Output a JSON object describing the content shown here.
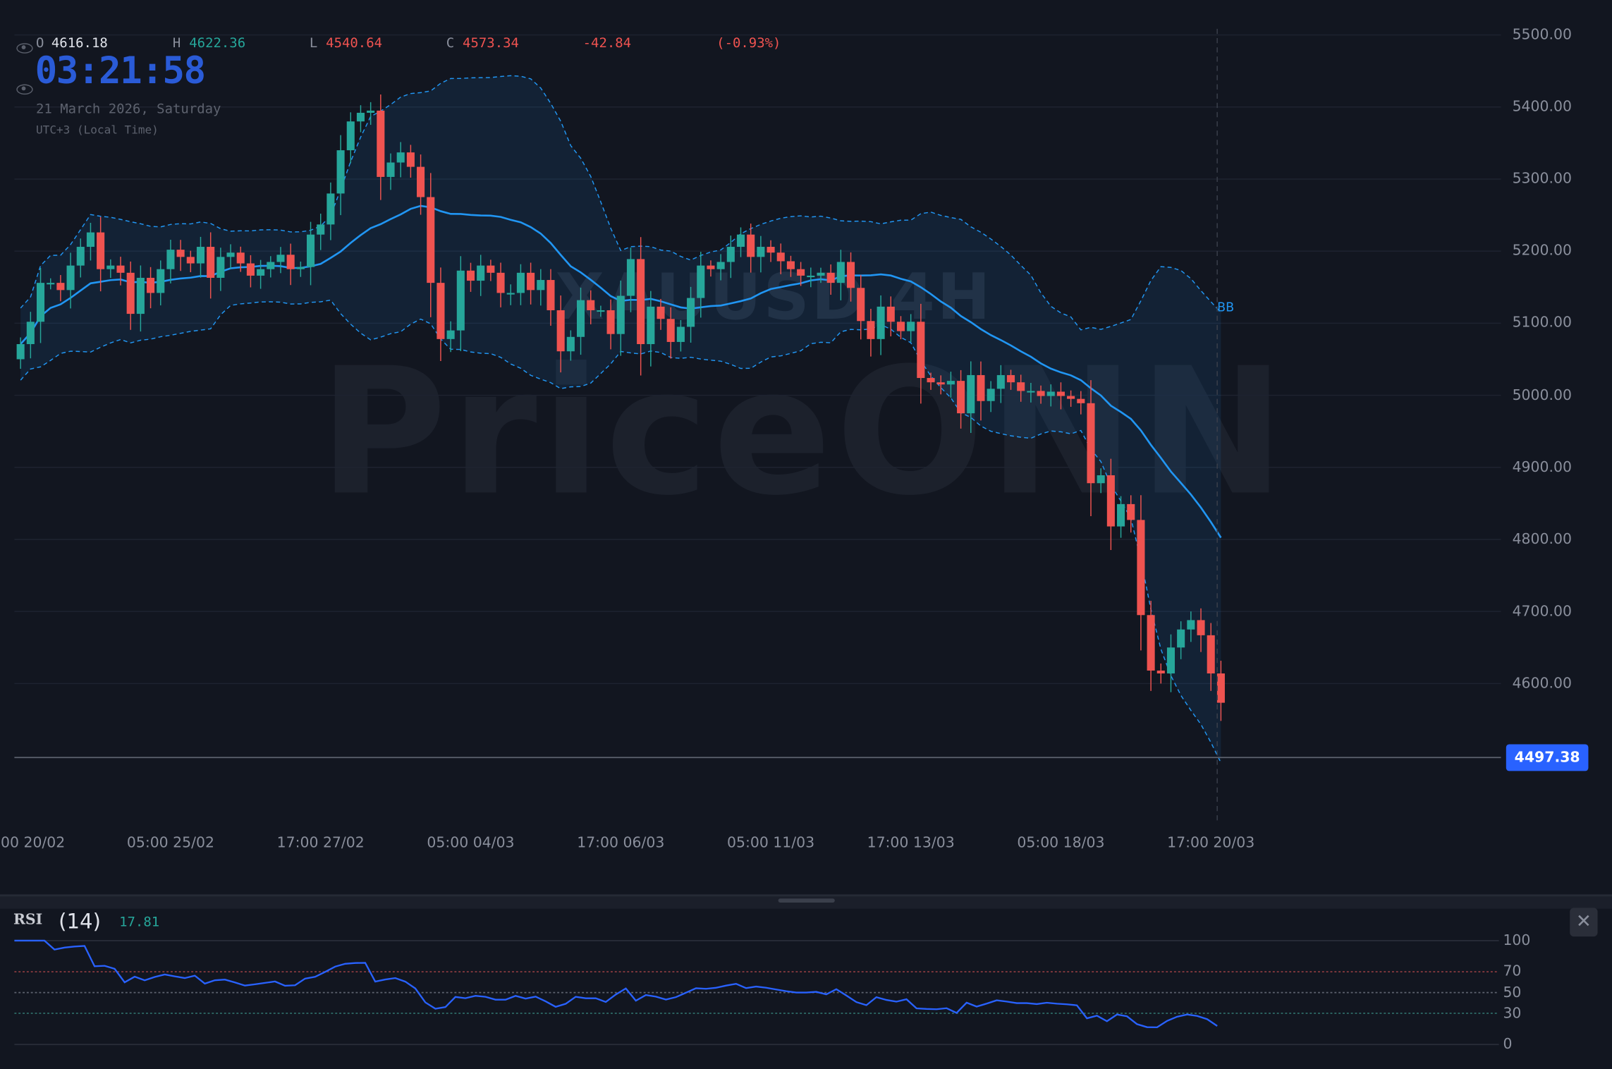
{
  "header": {
    "ohlc": {
      "o_label": "O",
      "o": "4616.18",
      "h_label": "H",
      "h": "4622.36",
      "l_label": "L",
      "l": "4540.64",
      "c_label": "C",
      "c": "4573.34",
      "change": "-42.84",
      "change_pct": "(-0.93%)"
    },
    "clock": "03:21:58",
    "date": "21 March 2026, Saturday",
    "timezone": "UTC+3 (Local Time)"
  },
  "watermark": {
    "symbol": "XAUUSD 4H",
    "brand": "PriceONN"
  },
  "colors": {
    "up": "#26a69a",
    "down": "#ef5350",
    "basis": "#2196f3",
    "band": "#2196f3",
    "price_tag": "#2962ff",
    "rsi": "#2962ff",
    "clock": "#2a5bd7"
  },
  "indicator_label": "BB",
  "current_price": "4497.38",
  "chart_data": [
    {
      "type": "candlestick",
      "yaxis": {
        "ticks": [
          "5500.00",
          "5400.00",
          "5300.00",
          "5200.00",
          "5100.00",
          "5000.00",
          "4900.00",
          "4800.00",
          "4700.00",
          "4600.00"
        ],
        "range": [
          4460,
          5545
        ]
      },
      "xticks": [
        {
          "label": "00 20/02",
          "index": 1
        },
        {
          "label": "05:00 25/02",
          "index": 15
        },
        {
          "label": "17:00 27/02",
          "index": 30
        },
        {
          "label": "05:00 04/03",
          "index": 45
        },
        {
          "label": "17:00 06/03",
          "index": 60
        },
        {
          "label": "05:00 11/03",
          "index": 75
        },
        {
          "label": "17:00 13/03",
          "index": 89
        },
        {
          "label": "05:00 18/03",
          "index": 104
        },
        {
          "label": "17:00 20/03",
          "index": 119
        }
      ],
      "first_open": 5050,
      "closes": [
        5071,
        5102,
        5156,
        5156,
        5146,
        5180,
        5206,
        5226,
        5175,
        5180,
        5170,
        5113,
        5163,
        5142,
        5175,
        5202,
        5192,
        5183,
        5206,
        5163,
        5192,
        5198,
        5183,
        5166,
        5175,
        5185,
        5195,
        5175,
        5178,
        5223,
        5237,
        5280,
        5340,
        5380,
        5392,
        5395,
        5303,
        5323,
        5337,
        5317,
        5275,
        5156,
        5078,
        5090,
        5173,
        5159,
        5180,
        5170,
        5142,
        5142,
        5170,
        5146,
        5160,
        5118,
        5061,
        5081,
        5132,
        5118,
        5118,
        5085,
        5138,
        5189,
        5071,
        5123,
        5106,
        5074,
        5095,
        5135,
        5180,
        5175,
        5185,
        5206,
        5223,
        5192,
        5206,
        5198,
        5186,
        5175,
        5166,
        5166,
        5170,
        5156,
        5185,
        5149,
        5103,
        5078,
        5123,
        5102,
        5089,
        5102,
        5024,
        5018,
        5015,
        5020,
        4975,
        5028,
        4992,
        5009,
        5028,
        5018,
        5006,
        5006,
        4999,
        5005,
        4999,
        4995,
        4989,
        4878,
        4889,
        4818,
        4849,
        4827,
        4695,
        4618,
        4614,
        4650,
        4675,
        4688,
        4667,
        4614,
        4573.34
      ],
      "overlay": {
        "name": "BB",
        "period": 20,
        "stddev": 2
      }
    },
    {
      "type": "line",
      "title": "RSI",
      "length": "(14)",
      "value": "17.81",
      "yaxis": {
        "ticks": [
          "100",
          "70",
          "50",
          "30",
          "0"
        ],
        "range": [
          0,
          100
        ]
      },
      "levels": [
        70,
        50,
        30
      ]
    }
  ],
  "rsi_close_label": "✕"
}
